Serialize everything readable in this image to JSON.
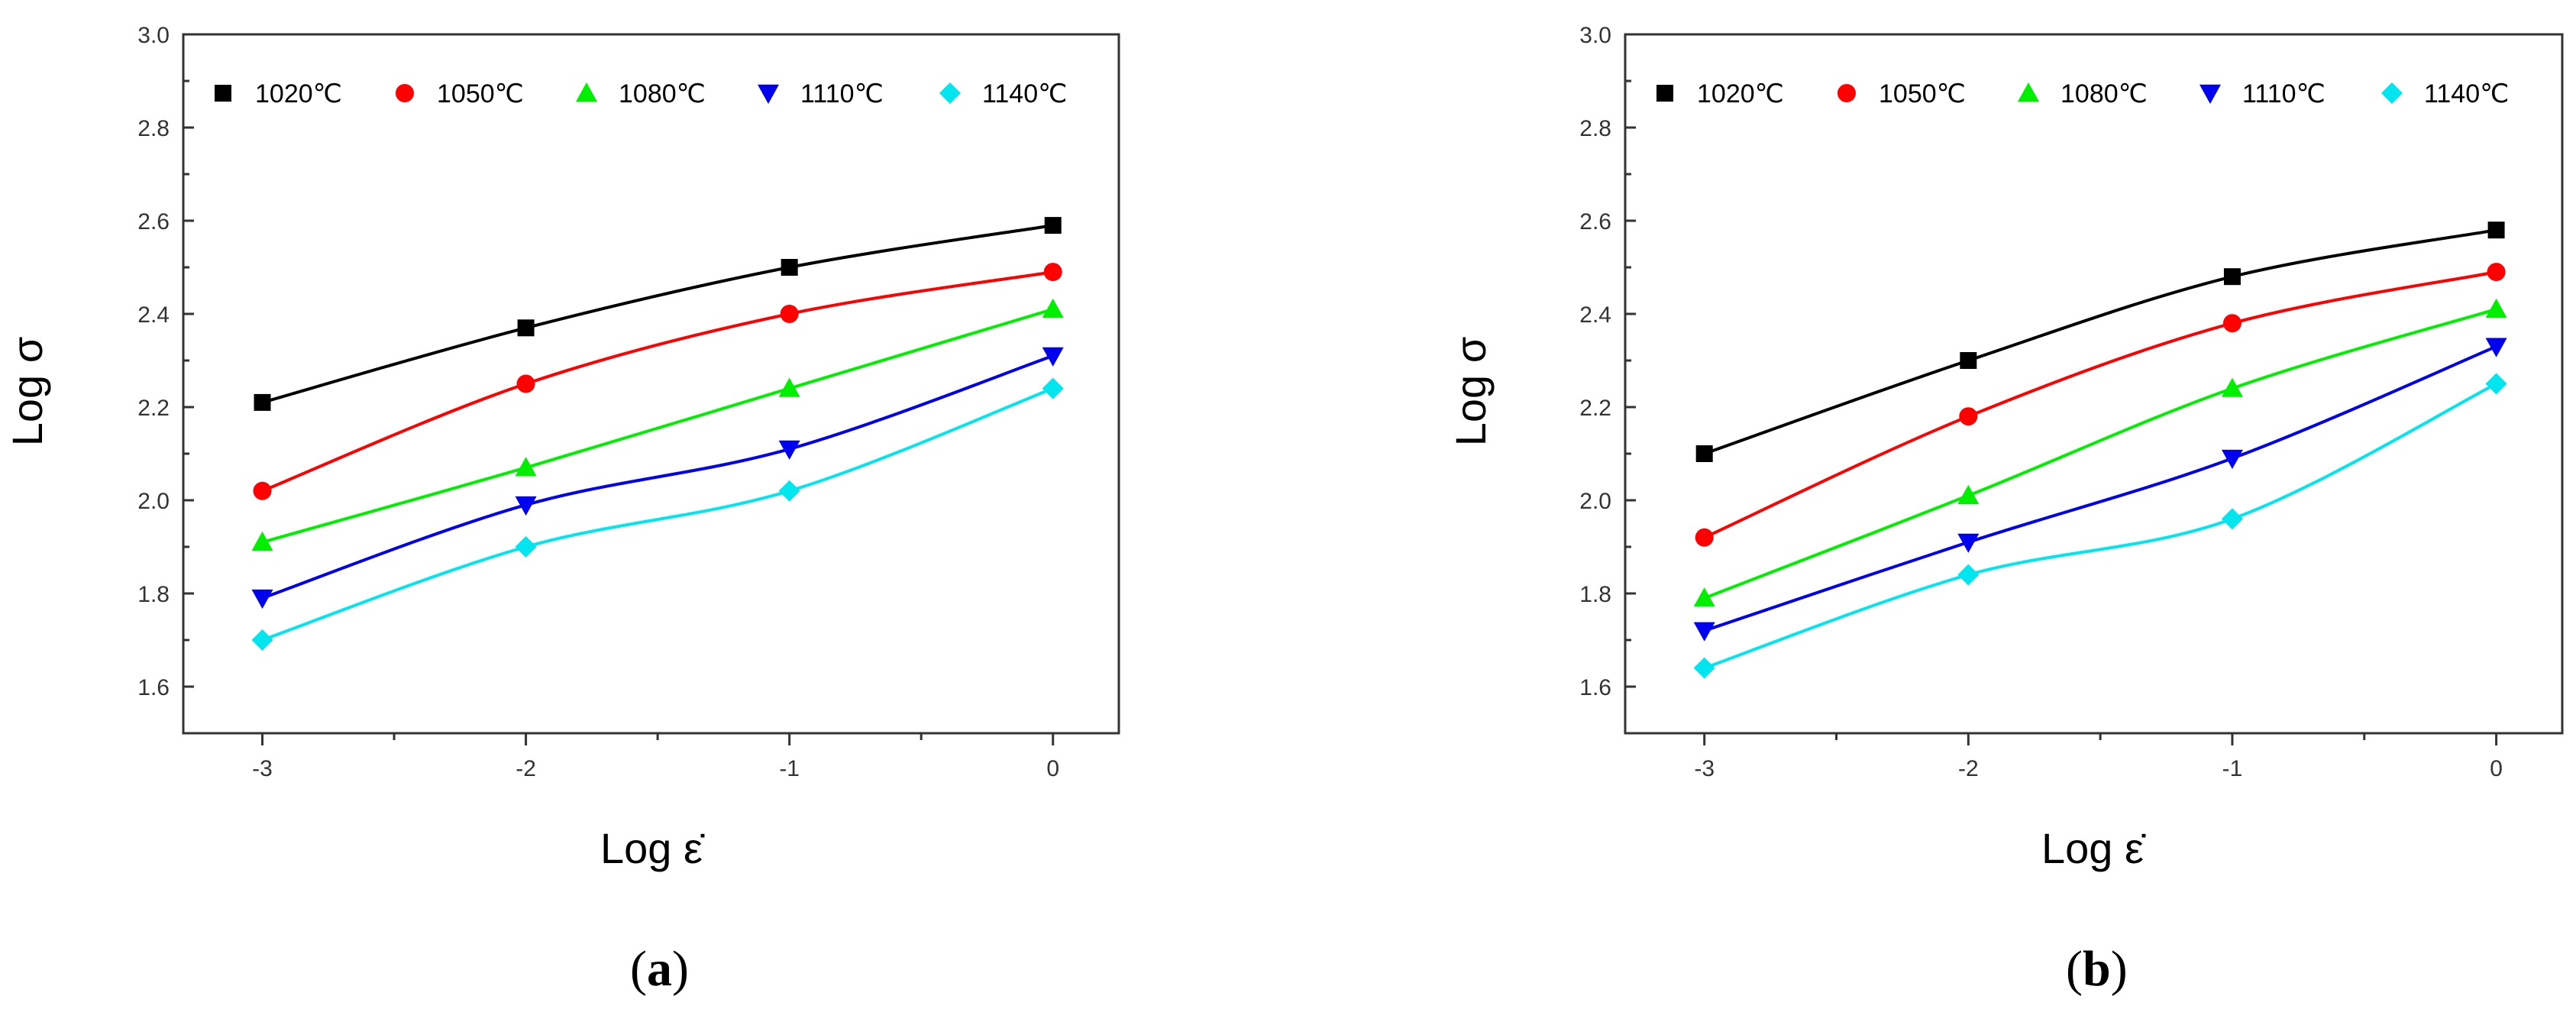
{
  "chart_data": [
    {
      "type": "line",
      "panel": "a",
      "xlabel": "Log ε̇",
      "ylabel": "Log σ",
      "xlim": [
        -3.3,
        0.25
      ],
      "ylim": [
        1.5,
        3.0
      ],
      "xticks": [
        -3,
        -2,
        -1,
        0
      ],
      "xtick_labels": [
        "-3",
        "-2",
        "-1",
        "0"
      ],
      "yticks": [
        1.6,
        1.8,
        2.0,
        2.2,
        2.4,
        2.6,
        2.8,
        3.0
      ],
      "ytick_labels": [
        "1.6",
        "1.8",
        "2.0",
        "2.2",
        "2.4",
        "2.6",
        "2.8",
        "3.0"
      ],
      "x": [
        -3,
        -2,
        -1,
        0
      ],
      "series": [
        {
          "name": "1020℃",
          "color": "#000000",
          "marker": "square",
          "values": [
            2.21,
            2.37,
            2.5,
            2.59
          ]
        },
        {
          "name": "1050℃",
          "color": "#ff0000",
          "marker": "circle",
          "values": [
            2.02,
            2.25,
            2.4,
            2.49
          ]
        },
        {
          "name": "1080℃",
          "color": "#00ee00",
          "marker": "triangle-up",
          "values": [
            1.91,
            2.07,
            2.24,
            2.41
          ]
        },
        {
          "name": "1110℃",
          "color": "#0000ee",
          "marker": "triangle-down",
          "values": [
            1.79,
            1.99,
            2.11,
            2.31
          ]
        },
        {
          "name": "1140℃",
          "color": "#00e5ee",
          "marker": "diamond",
          "values": [
            1.7,
            1.9,
            2.02,
            2.24
          ]
        }
      ],
      "legend": "top",
      "caption": {
        "open": "(",
        "letter": "a",
        "close": ")"
      }
    },
    {
      "type": "line",
      "panel": "b",
      "xlabel": "Log ε̇",
      "ylabel": "Log σ",
      "xlim": [
        -3.3,
        0.25
      ],
      "ylim": [
        1.5,
        3.0
      ],
      "xticks": [
        -3,
        -2,
        -1,
        0
      ],
      "xtick_labels": [
        "-3",
        "-2",
        "-1",
        "0"
      ],
      "yticks": [
        1.6,
        1.8,
        2.0,
        2.2,
        2.4,
        2.6,
        2.8,
        3.0
      ],
      "ytick_labels": [
        "1.6",
        "1.8",
        "2.0",
        "2.2",
        "2.4",
        "2.6",
        "2.8",
        "3.0"
      ],
      "x": [
        -3,
        -2,
        -1,
        0
      ],
      "series": [
        {
          "name": "1020℃",
          "color": "#000000",
          "marker": "square",
          "values": [
            2.1,
            2.3,
            2.48,
            2.58
          ]
        },
        {
          "name": "1050℃",
          "color": "#ff0000",
          "marker": "circle",
          "values": [
            1.92,
            2.18,
            2.38,
            2.49
          ]
        },
        {
          "name": "1080℃",
          "color": "#00ee00",
          "marker": "triangle-up",
          "values": [
            1.79,
            2.01,
            2.24,
            2.41
          ]
        },
        {
          "name": "1110℃",
          "color": "#0000ee",
          "marker": "triangle-down",
          "values": [
            1.72,
            1.91,
            2.09,
            2.33
          ]
        },
        {
          "name": "1140℃",
          "color": "#00e5ee",
          "marker": "diamond",
          "values": [
            1.64,
            1.84,
            1.96,
            2.25
          ]
        }
      ],
      "legend": "top",
      "caption": {
        "open": "(",
        "letter": "b",
        "close": ")"
      }
    }
  ]
}
